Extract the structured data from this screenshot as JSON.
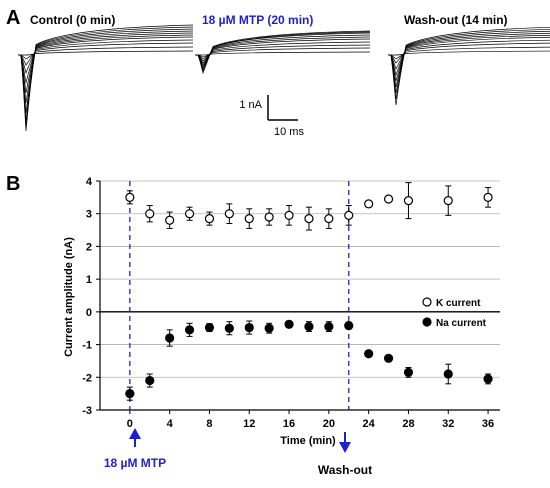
{
  "panel_a": {
    "letter": "A",
    "conditions": [
      {
        "title": "Control (0 min)",
        "color": "#000000"
      },
      {
        "title": "18 µM MTP (20 min)",
        "color": "#1f1fcc"
      },
      {
        "title": "Wash-out (14 min)",
        "color": "#000000"
      }
    ],
    "scale_bar": {
      "y_label": "1 nA",
      "x_label": "10 ms"
    }
  },
  "panel_b": {
    "letter": "B"
  },
  "annotations": {
    "drug_start": {
      "label": "18 µM MTP",
      "time": 0,
      "color": "#1f1fcc"
    },
    "washout": {
      "label": "Wash-out",
      "time": 22,
      "color": "#000000"
    }
  },
  "chart_data": {
    "type": "scatter",
    "xlabel": "Time (min)",
    "ylabel": "Current amplitude (nA)",
    "xticks": [
      0,
      4,
      8,
      12,
      16,
      20,
      24,
      28,
      32,
      36
    ],
    "yticks": [
      4,
      3,
      2,
      1,
      0,
      -1,
      -2,
      -3
    ],
    "ylim": [
      -3,
      4
    ],
    "xlim": [
      -3,
      37.2
    ],
    "grid": "horizontal",
    "legend_position": "right",
    "vertical_markers": [
      0,
      22
    ],
    "marker_color": "#1f1fcc",
    "series": [
      {
        "name": "K current",
        "marker": "open-circle",
        "x": [
          0,
          2,
          4,
          6,
          8,
          10,
          12,
          14,
          16,
          18,
          20,
          22,
          24,
          26,
          28,
          32,
          36
        ],
        "y": [
          3.5,
          3.0,
          2.8,
          3.0,
          2.85,
          3.0,
          2.85,
          2.9,
          2.95,
          2.85,
          2.85,
          2.95,
          3.3,
          3.45,
          3.4,
          3.4,
          3.5
        ],
        "err": [
          0.2,
          0.25,
          0.25,
          0.2,
          0.2,
          0.3,
          0.3,
          0.25,
          0.3,
          0.35,
          0.3,
          0.3,
          0.0,
          0.0,
          0.55,
          0.45,
          0.3
        ]
      },
      {
        "name": "Na current",
        "marker": "filled-circle",
        "x": [
          0,
          2,
          4,
          6,
          8,
          10,
          12,
          14,
          16,
          18,
          20,
          22,
          24,
          26,
          28,
          32,
          36
        ],
        "y": [
          -2.5,
          -2.1,
          -0.8,
          -0.55,
          -0.48,
          -0.5,
          -0.48,
          -0.5,
          -0.38,
          -0.45,
          -0.45,
          -0.42,
          -1.28,
          -1.42,
          -1.85,
          -1.9,
          -2.05
        ],
        "err": [
          0.2,
          0.2,
          0.25,
          0.2,
          0.12,
          0.2,
          0.2,
          0.15,
          0.1,
          0.15,
          0.15,
          0.1,
          0.0,
          0.0,
          0.15,
          0.3,
          0.15
        ]
      }
    ]
  }
}
